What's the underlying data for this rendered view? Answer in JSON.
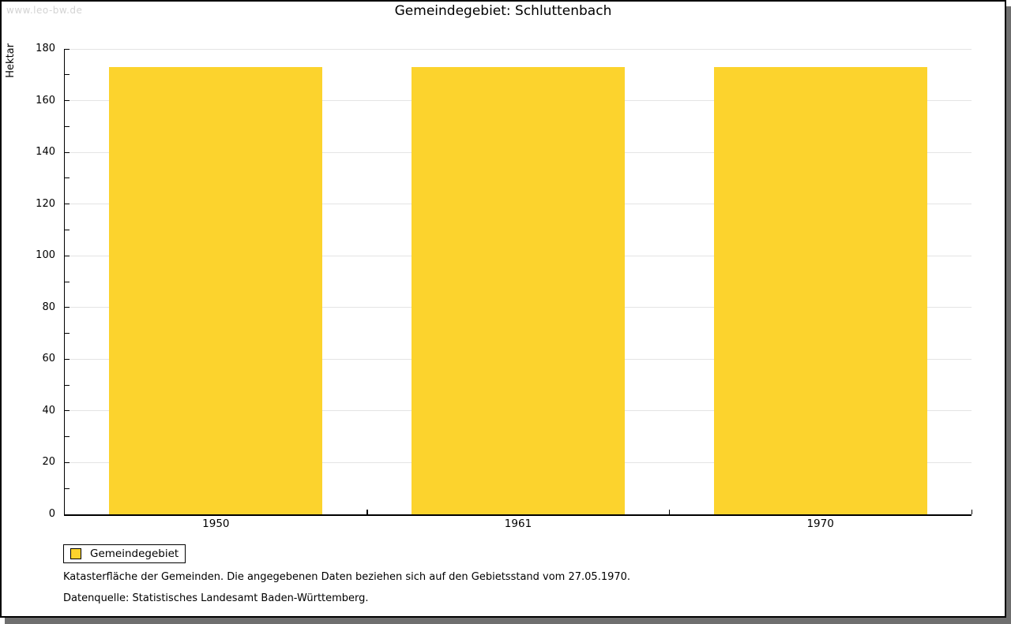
{
  "watermark": "www.leo-bw.de",
  "title": "Gemeindegebiet: Schluttenbach",
  "legend": {
    "label": "Gemeindegebiet"
  },
  "footnotes": [
    "Katasterfläche der Gemeinden. Die angegebenen Daten beziehen sich auf den Gebietsstand vom 27.05.1970.",
    "Datenquelle: Statistisches Landesamt Baden-Württemberg."
  ],
  "colors": {
    "bar": "#fcd32d",
    "gridline": "#e4e4e4",
    "axis": "#000000",
    "watermark": "#d3d3d3",
    "shadow": "#6f6f6f"
  },
  "chart_data": {
    "type": "bar",
    "categories": [
      "1950",
      "1961",
      "1970"
    ],
    "series": [
      {
        "name": "Gemeindegebiet",
        "values": [
          173,
          173,
          173
        ]
      }
    ],
    "title": "Gemeindegebiet: Schluttenbach",
    "xlabel": "",
    "ylabel": "Hektar",
    "ylim": [
      0,
      180
    ],
    "y_major_step": 20,
    "y_minor_step": 10,
    "grid": true,
    "legend_position": "bottom-left"
  }
}
